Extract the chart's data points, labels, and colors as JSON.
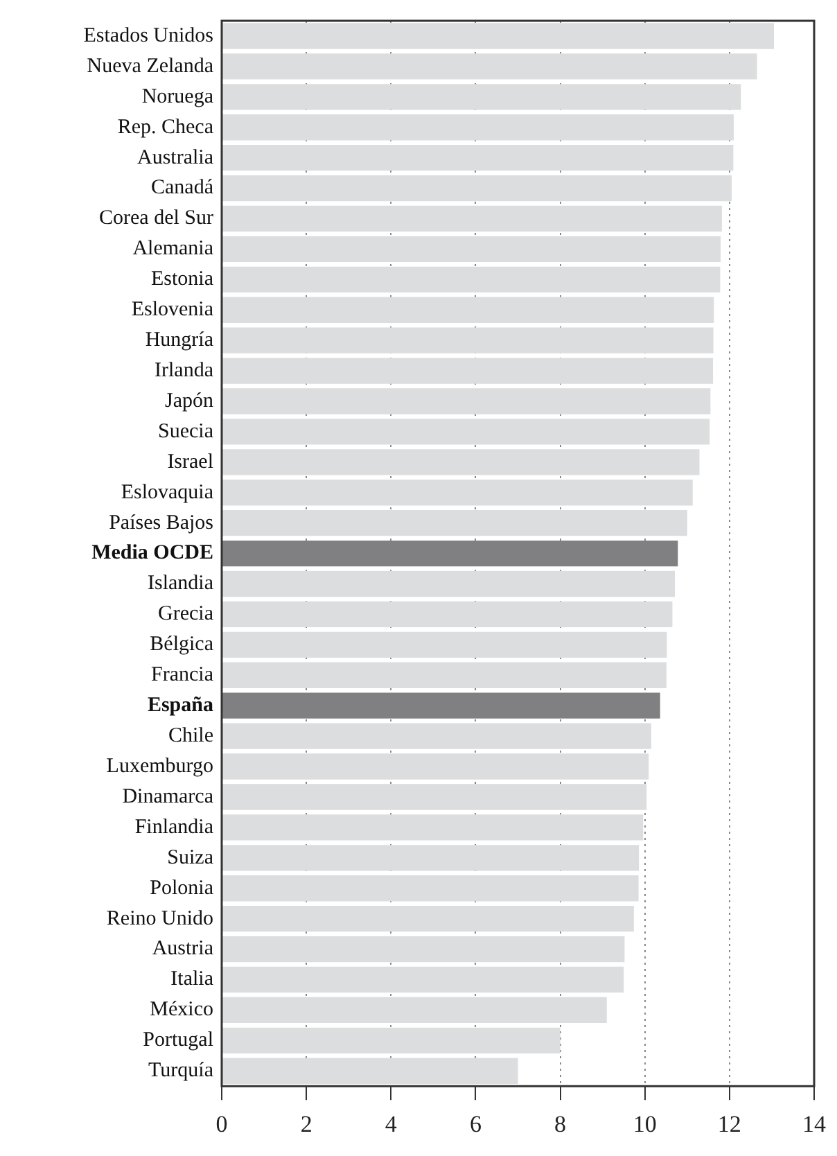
{
  "chart_data": {
    "type": "bar",
    "orientation": "horizontal",
    "categories": [
      "Estados Unidos",
      "Nueva Zelanda",
      "Noruega",
      "Rep. Checa",
      "Australia",
      "Canadá",
      "Corea del Sur",
      "Alemania",
      "Estonia",
      "Eslovenia",
      "Hungría",
      "Irlanda",
      "Japón",
      "Suecia",
      "Israel",
      "Eslovaquia",
      "Países Bajos",
      "Media OCDE",
      "Islandia",
      "Grecia",
      "Bélgica",
      "Francia",
      "España",
      "Chile",
      "Luxemburgo",
      "Dinamarca",
      "Finlandia",
      "Suiza",
      "Polonia",
      "Reino Unido",
      "Austria",
      "Italia",
      "México",
      "Portugal",
      "Turquía"
    ],
    "values": [
      13.05,
      12.65,
      12.27,
      12.1,
      12.09,
      12.05,
      11.82,
      11.79,
      11.78,
      11.63,
      11.62,
      11.61,
      11.55,
      11.53,
      11.29,
      11.13,
      11.0,
      10.78,
      10.71,
      10.65,
      10.52,
      10.51,
      10.36,
      10.15,
      10.09,
      10.04,
      9.96,
      9.86,
      9.85,
      9.74,
      9.52,
      9.5,
      9.1,
      8.0,
      7.0
    ],
    "colors": [
      "#dcdddf",
      "#dcdddf",
      "#dcdddf",
      "#dcdddf",
      "#dcdddf",
      "#dcdddf",
      "#dcdddf",
      "#dcdddf",
      "#dcdddf",
      "#dcdddf",
      "#dcdddf",
      "#dcdddf",
      "#dcdddf",
      "#dcdddf",
      "#dcdddf",
      "#dcdddf",
      "#dcdddf",
      "#808083",
      "#dcdddf",
      "#dcdddf",
      "#dcdddf",
      "#dcdddf",
      "#808083",
      "#dcdddf",
      "#dcdddf",
      "#dcdddf",
      "#dcdddf",
      "#dcdddf",
      "#dcdddf",
      "#dcdddf",
      "#dcdddf",
      "#dcdddf",
      "#dcdddf",
      "#dcdddf",
      "#dcdddf"
    ],
    "xlim": [
      0,
      14
    ],
    "xticks": [
      0,
      2,
      4,
      6,
      8,
      10,
      12,
      14
    ],
    "grid": "x",
    "legend": false
  }
}
